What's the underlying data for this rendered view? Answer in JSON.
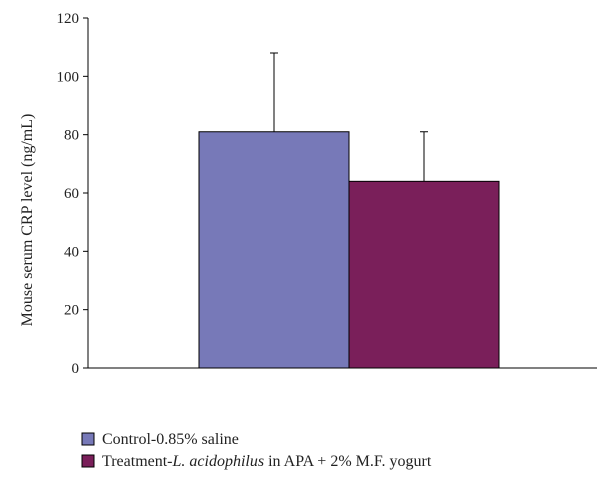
{
  "chart_data": {
    "type": "bar",
    "title": "",
    "xlabel": "",
    "ylabel": "Mouse serum CRP level (ng/mL)",
    "ylim": [
      0,
      120
    ],
    "yticks": [
      0,
      20,
      40,
      60,
      80,
      100,
      120
    ],
    "grid": false,
    "legend_position": "bottom",
    "series": [
      {
        "name": "Control-0.85% saline",
        "value": 81,
        "error": 27,
        "color": "#7779b8",
        "legend_parts": [
          {
            "text": "Control-0.85% saline",
            "italic": false
          }
        ]
      },
      {
        "name": "Treatment-L. acidophilus in APA + 2% M.F. yogurt",
        "value": 64,
        "error": 17,
        "color": "#7a1f5a",
        "legend_parts": [
          {
            "text": "Treatment-",
            "italic": false
          },
          {
            "text": "L. acidophilus",
            "italic": true
          },
          {
            "text": " in APA + 2% M.F. yogurt",
            "italic": false
          }
        ]
      }
    ]
  }
}
